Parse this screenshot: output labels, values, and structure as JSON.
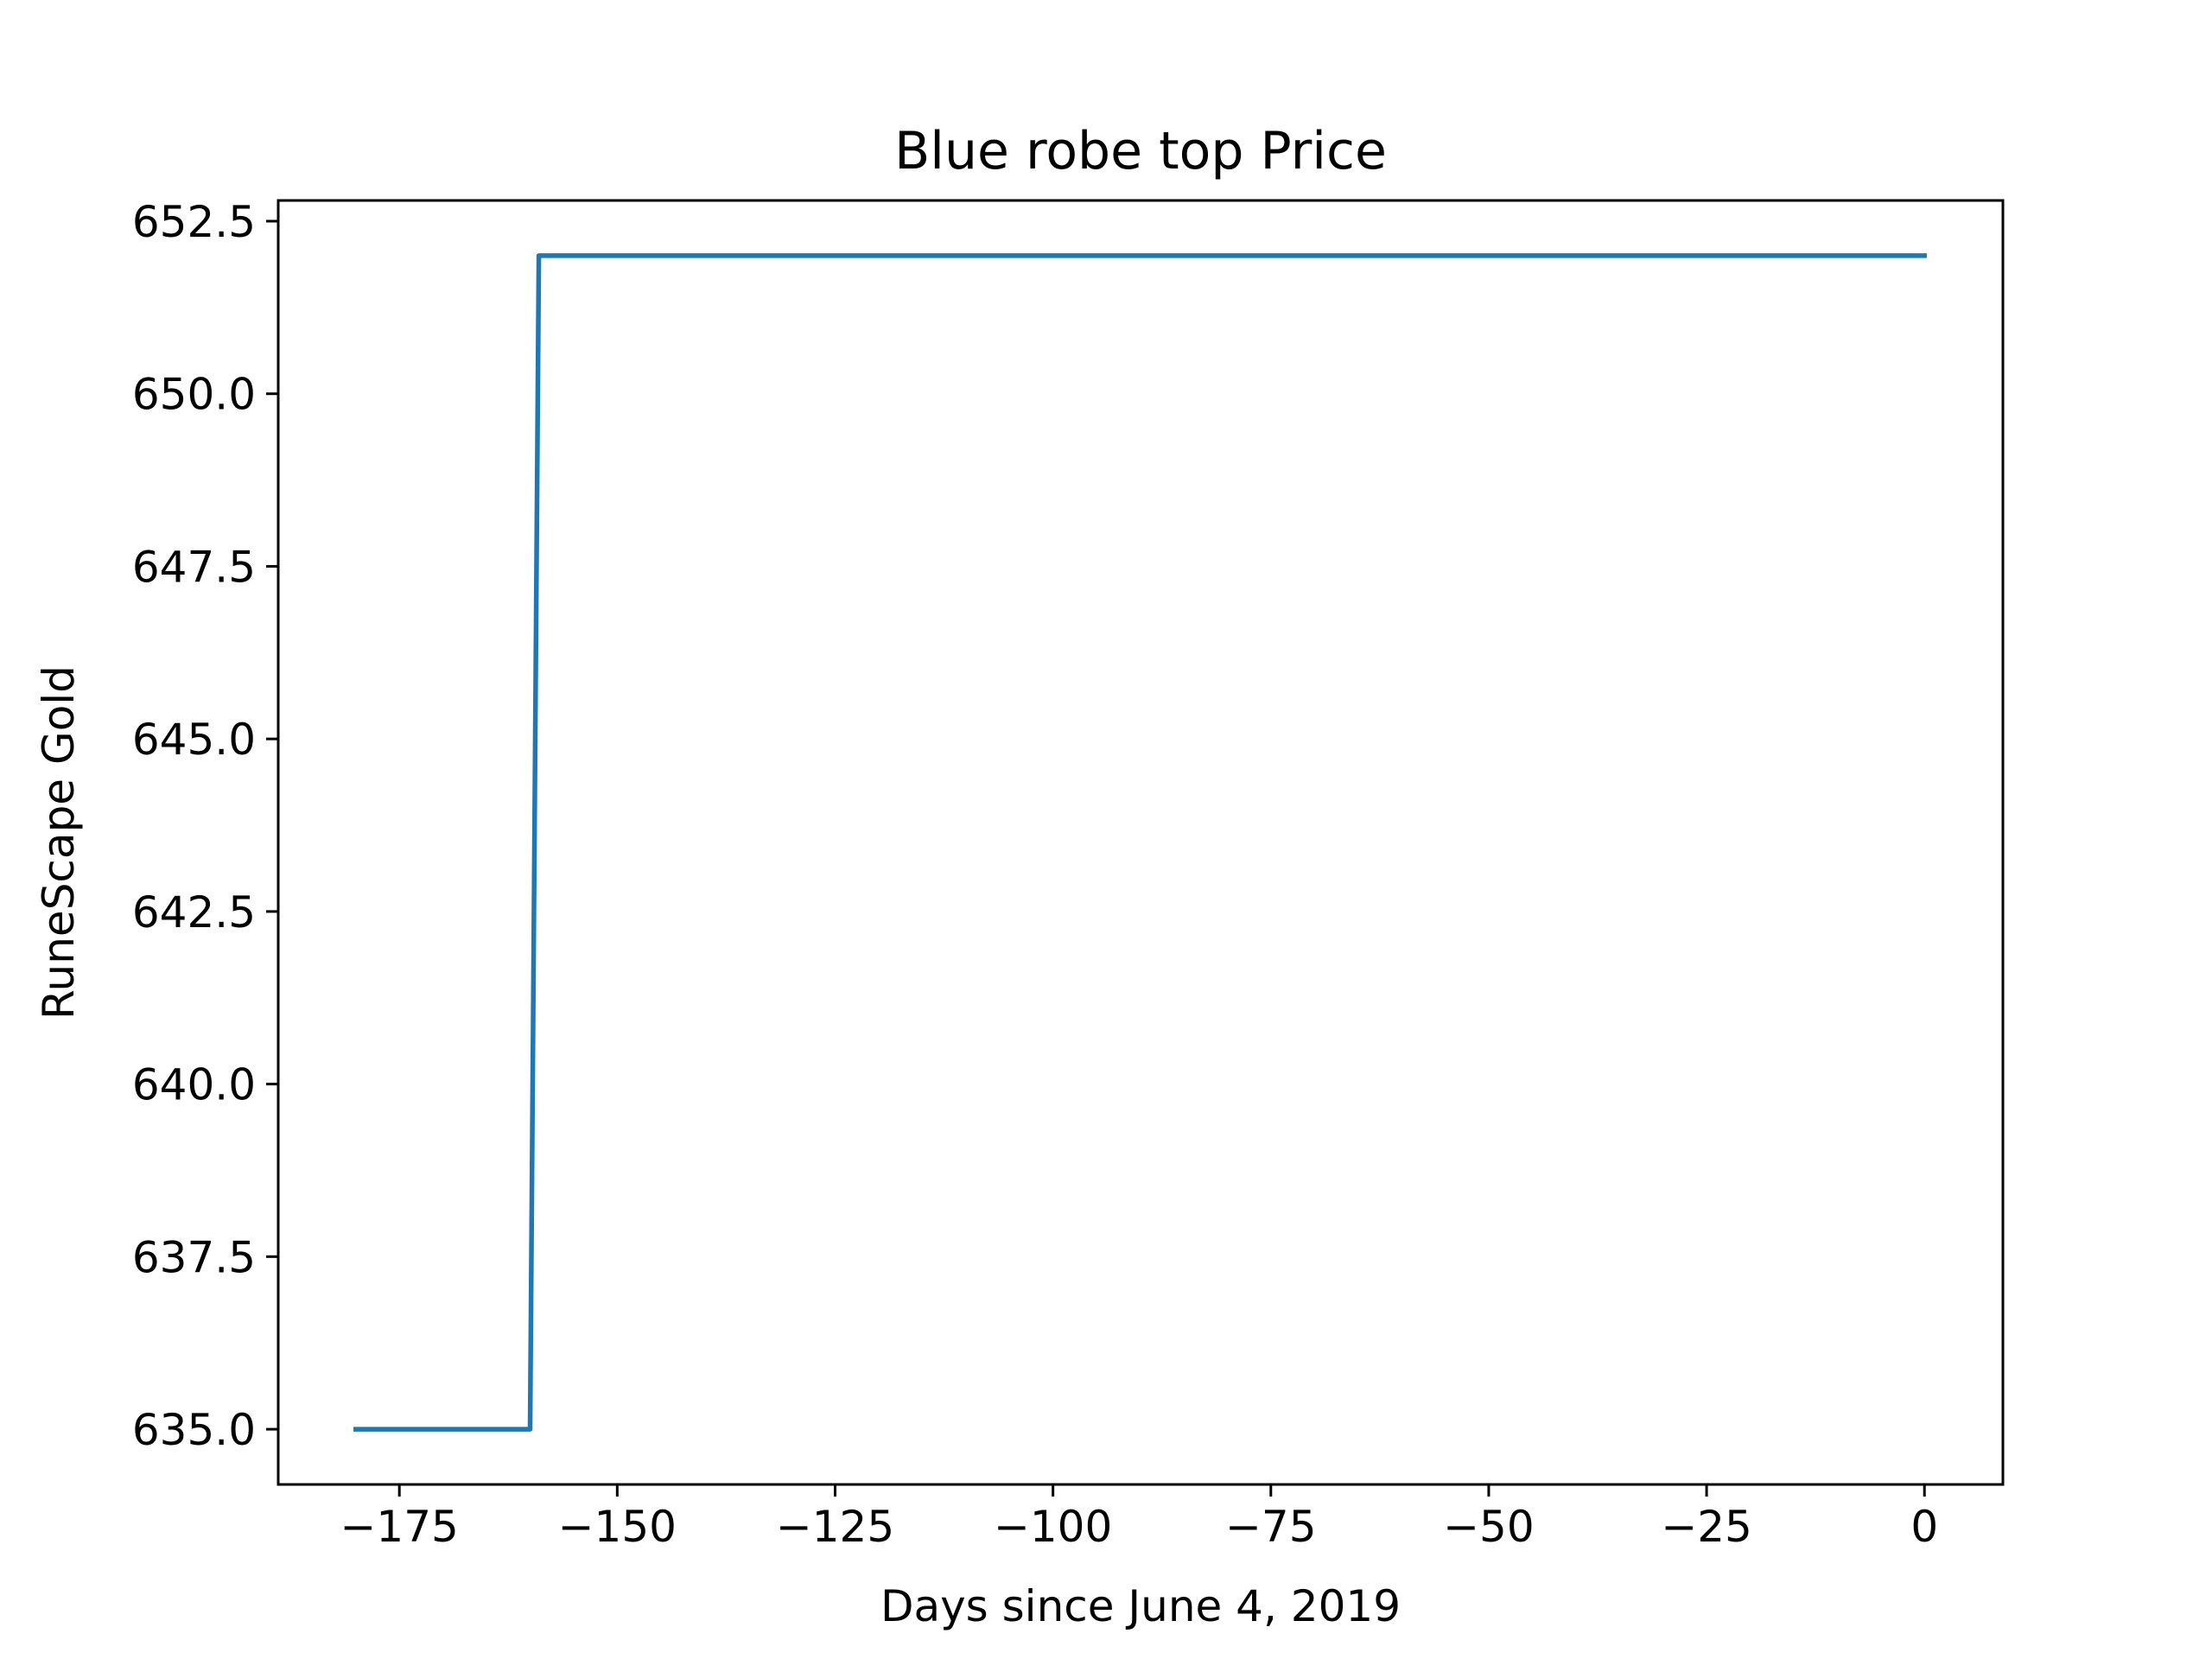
{
  "chart_data": {
    "type": "line",
    "title": "Blue robe top Price",
    "xlabel": "Days since June 4, 2019",
    "ylabel": "RuneScape Gold",
    "xlim": [
      -188.9,
      9
    ],
    "ylim": [
      634.2,
      652.8
    ],
    "xticks": [
      -175,
      -150,
      -125,
      -100,
      -75,
      -50,
      -25,
      0
    ],
    "xtick_labels": [
      "−175",
      "−150",
      "−125",
      "−100",
      "−75",
      "−50",
      "−25",
      "0"
    ],
    "yticks": [
      635.0,
      637.5,
      640.0,
      642.5,
      645.0,
      647.5,
      650.0,
      652.5
    ],
    "ytick_labels": [
      "635.0",
      "637.5",
      "640.0",
      "642.5",
      "645.0",
      "647.5",
      "650.0",
      "652.5"
    ],
    "grid": false,
    "series": [
      {
        "color": "#1f77b4",
        "x": [
          -180,
          -160,
          -159,
          0
        ],
        "y": [
          635,
          635,
          652,
          652
        ]
      }
    ]
  }
}
